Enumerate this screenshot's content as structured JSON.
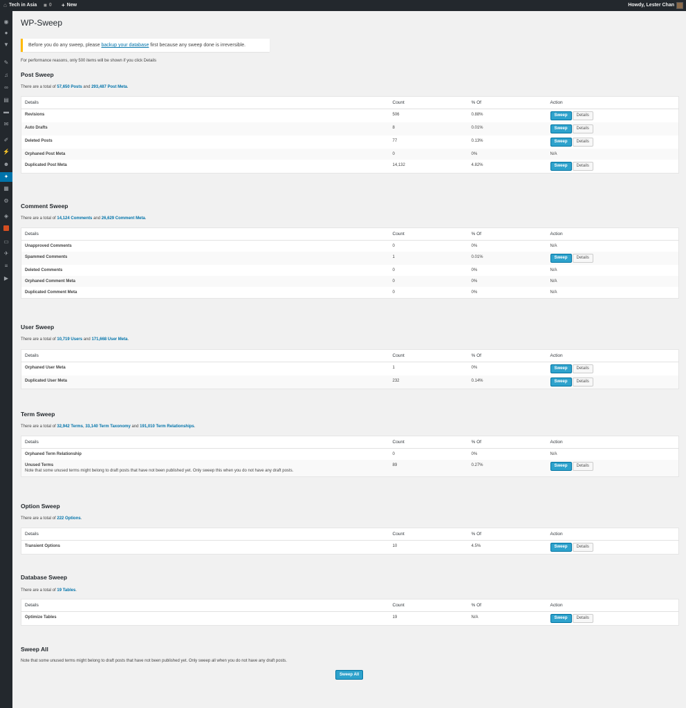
{
  "admin_bar": {
    "site_name": "Tech in Asia",
    "comments_count": "0",
    "new_label": "New",
    "account_label": "Howdy, Lester Chan"
  },
  "admin_menu_icons": [
    "dashboard-icon",
    "jetpack-icon",
    "stats-icon",
    "posts-icon",
    "media-icon",
    "links-icon",
    "pages-icon",
    "comments-icon",
    "feedback-icon",
    "appearance-icon",
    "plugins-icon",
    "users-icon",
    "tools-icon",
    "settings-icon",
    "shield-icon",
    "brand-icon",
    "mail-icon",
    "gallery-icon",
    "list-icon",
    "play-icon"
  ],
  "page": {
    "title": "WP-Sweep",
    "notice_before": "Before you do any sweep, please ",
    "notice_link": "backup your database",
    "notice_after": " first because any sweep done is irreversible.",
    "perf_note": "For performance reasons, only 500 items will be shown if you click Details"
  },
  "table_headers": {
    "details": "Details",
    "count": "Count",
    "percent": "% Of",
    "action": "Action"
  },
  "buttons": {
    "sweep": "Sweep",
    "details": "Details",
    "na": "N/A",
    "sweep_all": "Sweep All"
  },
  "sections": {
    "post": {
      "title": "Post Sweep",
      "desc_prefix": "There are a total of ",
      "link1": "57,650 Posts",
      "mid": " and ",
      "link2": "293,487 Post Meta",
      "suffix": ".",
      "rows": [
        {
          "name": "Revisions",
          "count": "506",
          "percent": "0.88%",
          "has_action": true
        },
        {
          "name": "Auto Drafts",
          "count": "8",
          "percent": "0.01%",
          "has_action": true
        },
        {
          "name": "Deleted Posts",
          "count": "77",
          "percent": "0.13%",
          "has_action": true
        },
        {
          "name": "Orphaned Post Meta",
          "count": "0",
          "percent": "0%",
          "has_action": false
        },
        {
          "name": "Duplicated Post Meta",
          "count": "14,132",
          "percent": "4.82%",
          "has_action": true
        }
      ]
    },
    "comment": {
      "title": "Comment Sweep",
      "desc_prefix": "There are a total of ",
      "link1": "14,124 Comments",
      "mid": " and ",
      "link2": "26,629 Comment Meta",
      "suffix": ".",
      "rows": [
        {
          "name": "Unapproved Comments",
          "count": "0",
          "percent": "0%",
          "has_action": false
        },
        {
          "name": "Spammed Comments",
          "count": "1",
          "percent": "0.01%",
          "has_action": true
        },
        {
          "name": "Deleted Comments",
          "count": "0",
          "percent": "0%",
          "has_action": false
        },
        {
          "name": "Orphaned Comment Meta",
          "count": "0",
          "percent": "0%",
          "has_action": false
        },
        {
          "name": "Duplicated Comment Meta",
          "count": "0",
          "percent": "0%",
          "has_action": false
        }
      ]
    },
    "user": {
      "title": "User Sweep",
      "desc_prefix": "There are a total of ",
      "link1": "10,719 Users",
      "mid": " and ",
      "link2": "171,668 User Meta",
      "suffix": ".",
      "rows": [
        {
          "name": "Orphaned User Meta",
          "count": "1",
          "percent": "0%",
          "has_action": true
        },
        {
          "name": "Duplicated User Meta",
          "count": "232",
          "percent": "0.14%",
          "has_action": true
        }
      ]
    },
    "term": {
      "title": "Term Sweep",
      "desc_prefix": "There are a total of ",
      "link1": "32,942 Terms",
      "mid": ", ",
      "link2": "33,140 Term Taxonomy",
      "mid2": " and ",
      "link3": "191,010 Term Relationships",
      "suffix": ".",
      "rows": [
        {
          "name": "Orphaned Term Relationship",
          "count": "0",
          "percent": "0%",
          "has_action": false
        },
        {
          "name": "Unused Terms",
          "note": "Note that some unused terms might belong to draft posts that have not been published yet. Only sweep this when you do not have any draft posts.",
          "count": "89",
          "percent": "0.27%",
          "has_action": true
        }
      ]
    },
    "option": {
      "title": "Option Sweep",
      "desc_prefix": "There are a total of ",
      "link1": "222 Options",
      "suffix": ".",
      "rows": [
        {
          "name": "Transient Options",
          "count": "10",
          "percent": "4.5%",
          "has_action": true
        }
      ]
    },
    "database": {
      "title": "Database Sweep",
      "desc_prefix": "There are a total of ",
      "link1": "19 Tables",
      "suffix": ".",
      "rows": [
        {
          "name": "Optimize Tables",
          "count": "19",
          "percent": "N/A",
          "has_action": true
        }
      ]
    },
    "sweep_all": {
      "title": "Sweep All",
      "note": "Note that some unused terms might belong to draft posts that have not been published yet. Only sweep all when you do not have any draft posts."
    }
  }
}
